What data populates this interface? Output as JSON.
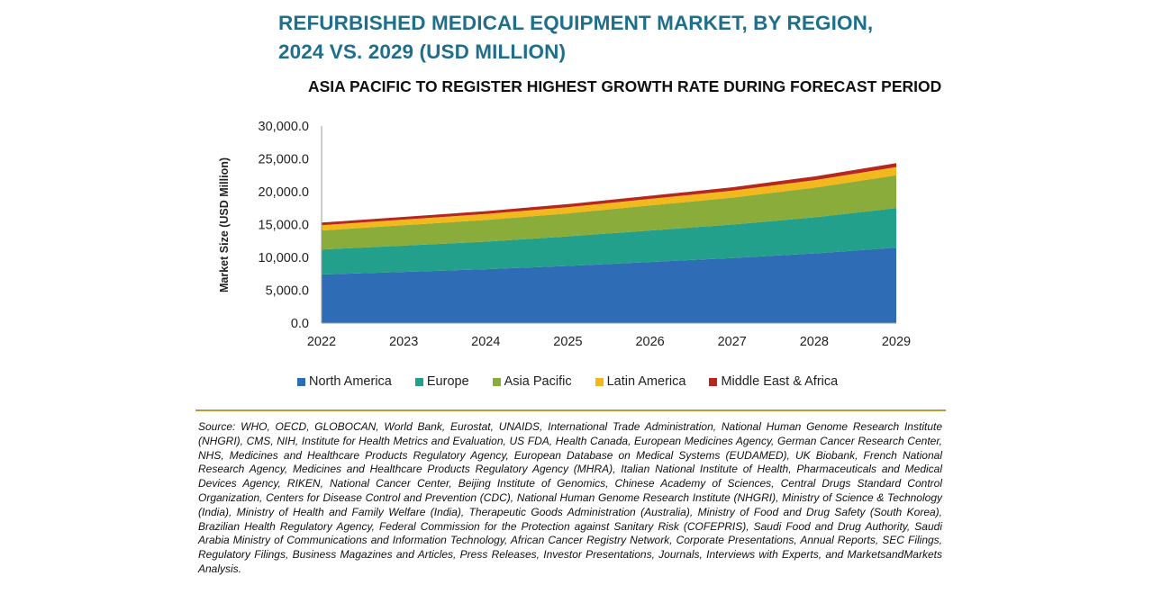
{
  "header": {
    "title_line1": "REFURBISHED MEDICAL EQUIPMENT MARKET, BY REGION,",
    "title_line2": "2024 VS. 2029 (USD MILLION)",
    "subtitle": "ASIA PACIFIC TO REGISTER HIGHEST GROWTH RATE DURING FORECAST PERIOD"
  },
  "colors": {
    "title": "#1f6f8b",
    "north_america": "#2e6db5",
    "europe": "#22a08c",
    "asia_pacific": "#8aac3a",
    "latin_america": "#f2b81c",
    "middle_east_africa": "#b5271f",
    "divider": "#b89b3c"
  },
  "chart_data": {
    "type": "area",
    "stacked": true,
    "title": "REFURBISHED MEDICAL EQUIPMENT MARKET, BY REGION, 2024 VS. 2029 (USD MILLION)",
    "xlabel": "",
    "ylabel": "Market Size (USD Million)",
    "ylim": [
      0,
      30000
    ],
    "yticks": [
      "30,000.0",
      "25,000.0",
      "20,000.0",
      "15,000.0",
      "10,000.0",
      "5,000.0",
      "0.0"
    ],
    "x": [
      "2022",
      "2023",
      "2024",
      "2025",
      "2026",
      "2027",
      "2028",
      "2029"
    ],
    "grid": false,
    "legend_position": "bottom",
    "series": [
      {
        "name": "North America",
        "color": "#2e6db5",
        "values": [
          7400,
          7800,
          8200,
          8700,
          9300,
          9900,
          10600,
          11500
        ]
      },
      {
        "name": "Europe",
        "color": "#22a08c",
        "values": [
          3800,
          4000,
          4200,
          4500,
          4800,
          5100,
          5500,
          6000
        ]
      },
      {
        "name": "Asia Pacific",
        "color": "#8aac3a",
        "values": [
          2900,
          3100,
          3300,
          3500,
          3800,
          4100,
          4500,
          5000
        ]
      },
      {
        "name": "Latin America",
        "color": "#f2b81c",
        "values": [
          800,
          850,
          900,
          950,
          1000,
          1050,
          1150,
          1250
        ]
      },
      {
        "name": "Middle East & Africa",
        "color": "#b5271f",
        "values": [
          400,
          420,
          440,
          460,
          480,
          520,
          560,
          600
        ]
      }
    ]
  },
  "legend": {
    "items": [
      {
        "label": "North America",
        "color": "#2e6db5"
      },
      {
        "label": "Europe",
        "color": "#22a08c"
      },
      {
        "label": "Asia Pacific",
        "color": "#8aac3a"
      },
      {
        "label": "Latin America",
        "color": "#f2b81c"
      },
      {
        "label": "Middle East & Africa",
        "color": "#b5271f"
      }
    ]
  },
  "source": {
    "text": "Source: WHO, OECD, GLOBOCAN, World Bank, Eurostat, UNAIDS, International Trade Administration, National Human Genome Research Institute (NHGRI), CMS, NIH, Institute for Health Metrics and Evaluation, US FDA, Health Canada, European Medicines Agency, German Cancer Research Center, NHS, Medicines and Healthcare Products Regulatory Agency, European Database on Medical Systems (EUDAMED), UK Biobank, French National Research Agency, Medicines and Healthcare Products Regulatory Agency (MHRA), Italian National Institute of Health, Pharmaceuticals and Medical Devices Agency, RIKEN, National Cancer Center, Beijing Institute of Genomics, Chinese Academy of Sciences, Central Drugs Standard Control Organization, Centers for Disease Control and Prevention (CDC), National Human Genome Research Institute (NHGRI), Ministry of Science & Technology (India), Ministry of Health and Family Welfare (India), Therapeutic Goods Administration (Australia), Ministry of Food and Drug Safety (South Korea), Brazilian Health Regulatory Agency, Federal Commission for the Protection against Sanitary Risk (COFEPRIS), Saudi Food and Drug Authority, Saudi Arabia Ministry of Communications and Information Technology, African Cancer Registry Network, Corporate Presentations, Annual Reports, SEC Filings, Regulatory Filings, Business Magazines and Articles, Press Releases, Investor Presentations, Journals, Interviews with Experts, and MarketsandMarkets Analysis."
  }
}
